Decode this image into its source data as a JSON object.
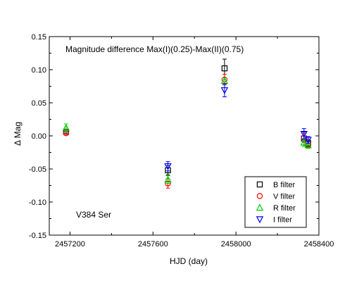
{
  "chart_data": {
    "type": "scatter",
    "title": "Magnitude difference Max(I)(0.25)-Max(II)(0.75)",
    "annotation": "V384 Ser",
    "xlabel": "HJD (day)",
    "ylabel": "Δ Mag",
    "xlim": [
      2457100,
      2458400
    ],
    "ylim": [
      -0.15,
      0.15
    ],
    "x_ticks": [
      2457200,
      2457600,
      2458000,
      2458400
    ],
    "x_tick_labels": [
      "2457200",
      "2457600",
      "2458000",
      "2458400"
    ],
    "y_ticks": [
      -0.15,
      -0.1,
      -0.05,
      0.0,
      0.05,
      0.1,
      0.15
    ],
    "y_tick_labels": [
      "-0.15",
      "-0.10",
      "-0.05",
      "0.00",
      "0.05",
      "0.10",
      "0.15"
    ],
    "grid": false,
    "legend_position": "bottom-right",
    "series": [
      {
        "name": "B filter",
        "marker": "square",
        "color": "#000000",
        "points": [
          {
            "x": 2457181,
            "y": 0.006,
            "err": 0.002
          },
          {
            "x": 2457672,
            "y": -0.052,
            "err": 0.007
          },
          {
            "x": 2457945,
            "y": 0.102,
            "err": 0.014
          },
          {
            "x": 2458328,
            "y": -0.004,
            "err": 0.01
          },
          {
            "x": 2458348,
            "y": -0.011,
            "err": 0.006
          }
        ]
      },
      {
        "name": "V filter",
        "marker": "circle",
        "color": "#ff0000",
        "points": [
          {
            "x": 2457181,
            "y": 0.004,
            "err": 0.002
          },
          {
            "x": 2457672,
            "y": -0.072,
            "err": 0.007
          },
          {
            "x": 2457945,
            "y": 0.085,
            "err": 0.008
          },
          {
            "x": 2458328,
            "y": -0.003,
            "err": 0.007
          },
          {
            "x": 2458348,
            "y": -0.012,
            "err": 0.004
          }
        ]
      },
      {
        "name": "R filter",
        "marker": "triangle-up",
        "color": "#00cc00",
        "points": [
          {
            "x": 2457181,
            "y": 0.012,
            "err": 0.006
          },
          {
            "x": 2457672,
            "y": -0.066,
            "err": 0.006
          },
          {
            "x": 2457945,
            "y": 0.083,
            "err": 0.005
          },
          {
            "x": 2458328,
            "y": -0.01,
            "err": 0.006
          },
          {
            "x": 2458348,
            "y": -0.014,
            "err": 0.005
          }
        ]
      },
      {
        "name": "I filter",
        "marker": "triangle-down",
        "color": "#0000ff",
        "points": [
          {
            "x": 2457672,
            "y": -0.046,
            "err": 0.007
          },
          {
            "x": 2457945,
            "y": 0.069,
            "err": 0.01
          },
          {
            "x": 2458328,
            "y": 0.003,
            "err": 0.008
          },
          {
            "x": 2458348,
            "y": -0.006,
            "err": 0.005
          }
        ]
      }
    ]
  }
}
